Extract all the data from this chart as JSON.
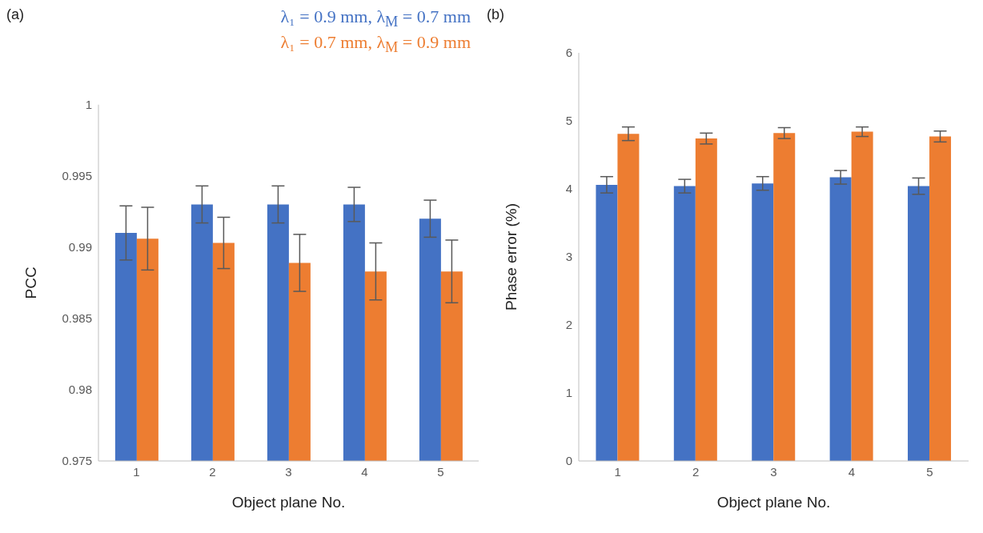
{
  "chart_data": [
    {
      "type": "bar",
      "title": "(a)",
      "xlabel": "Object plane No.",
      "ylabel": "PCC",
      "categories": [
        "1",
        "2",
        "3",
        "4",
        "5"
      ],
      "series": [
        {
          "name": "λ₁ = 0.9 mm, λ$_{M}$ = 0.7 mm",
          "color": "#4472c4",
          "values": [
            0.991,
            0.993,
            0.993,
            0.993,
            0.992
          ],
          "errors": [
            0.0019,
            0.0013,
            0.0013,
            0.0012,
            0.0013
          ]
        },
        {
          "name": "λ₁ = 0.7 mm, λ$_{M}$ = 0.9 mm",
          "color": "#ed7d31",
          "values": [
            0.9906,
            0.9903,
            0.9889,
            0.9883,
            0.9883
          ],
          "errors": [
            0.0022,
            0.0018,
            0.002,
            0.002,
            0.0022
          ]
        }
      ],
      "ylim": [
        0.975,
        1
      ],
      "yticks": [
        0.975,
        0.98,
        0.985,
        0.99,
        0.995,
        1
      ],
      "grid": false,
      "legend": "top right"
    },
    {
      "type": "bar",
      "title": "(b)",
      "xlabel": "Object plane No.",
      "ylabel": "Phase error (%)",
      "categories": [
        "1",
        "2",
        "3",
        "4",
        "5"
      ],
      "series": [
        {
          "color": "#4472c4",
          "values": [
            4.06,
            4.04,
            4.08,
            4.17,
            4.04
          ],
          "errors": [
            0.12,
            0.1,
            0.1,
            0.1,
            0.12
          ]
        },
        {
          "color": "#ed7d31",
          "values": [
            4.81,
            4.74,
            4.82,
            4.84,
            4.77
          ],
          "errors": [
            0.1,
            0.08,
            0.08,
            0.07,
            0.08
          ]
        }
      ],
      "ylim": [
        0,
        6
      ],
      "yticks": [
        0,
        1,
        2,
        3,
        4,
        5,
        6
      ],
      "grid": false
    }
  ]
}
